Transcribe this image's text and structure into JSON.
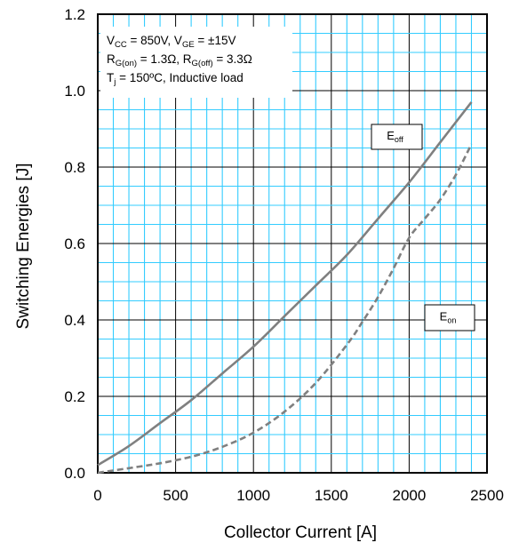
{
  "chart_data": {
    "type": "line",
    "xlabel": "Collector Current [A]",
    "ylabel": "Switching Energies [J]",
    "xlim": [
      0,
      2500
    ],
    "ylim": [
      0,
      1.2
    ],
    "x_ticks": [
      "0",
      "500",
      "1000",
      "1500",
      "2000",
      "2500"
    ],
    "y_ticks": [
      "0.0",
      "0.2",
      "0.4",
      "0.6",
      "0.8",
      "1.0",
      "1.2"
    ],
    "grid": true,
    "conditions": [
      {
        "parts": [
          {
            "t": "V"
          },
          {
            "t": "CC",
            "sub": true
          },
          {
            "t": " = 850V, V"
          },
          {
            "t": "GE",
            "sub": true
          },
          {
            "t": " = ±15V"
          }
        ]
      },
      {
        "parts": [
          {
            "t": "R"
          },
          {
            "t": "G(on)",
            "sub": true
          },
          {
            "t": " = 1.3Ω, R"
          },
          {
            "t": "G(off)",
            "sub": true
          },
          {
            "t": " = 3.3Ω"
          }
        ]
      },
      {
        "parts": [
          {
            "t": "T"
          },
          {
            "t": "j",
            "sub": true
          },
          {
            "t": " = 150ºC, Inductive load"
          }
        ]
      }
    ],
    "series": [
      {
        "name_parts": [
          {
            "t": "E"
          },
          {
            "t": "off",
            "sub": true
          }
        ],
        "style": "solid",
        "color": "#808080",
        "x": [
          0,
          200,
          400,
          600,
          800,
          1000,
          1200,
          1400,
          1600,
          1800,
          2000,
          2200,
          2400
        ],
        "y": [
          0.02,
          0.07,
          0.13,
          0.19,
          0.26,
          0.33,
          0.41,
          0.49,
          0.57,
          0.665,
          0.76,
          0.865,
          0.97
        ]
      },
      {
        "name_parts": [
          {
            "t": "E"
          },
          {
            "t": "on",
            "sub": true
          }
        ],
        "style": "dashed",
        "color": "#808080",
        "x": [
          0,
          200,
          400,
          600,
          800,
          1000,
          1200,
          1400,
          1600,
          1700,
          1800,
          1900,
          2000,
          2100,
          2200,
          2300,
          2400
        ],
        "y": [
          0.0,
          0.012,
          0.025,
          0.042,
          0.068,
          0.105,
          0.16,
          0.235,
          0.335,
          0.395,
          0.46,
          0.535,
          0.615,
          0.665,
          0.715,
          0.78,
          0.86
        ]
      }
    ],
    "colors": {
      "grid_fine": "#33ccff",
      "grid_major": "#000000",
      "curve": "#808080"
    }
  }
}
